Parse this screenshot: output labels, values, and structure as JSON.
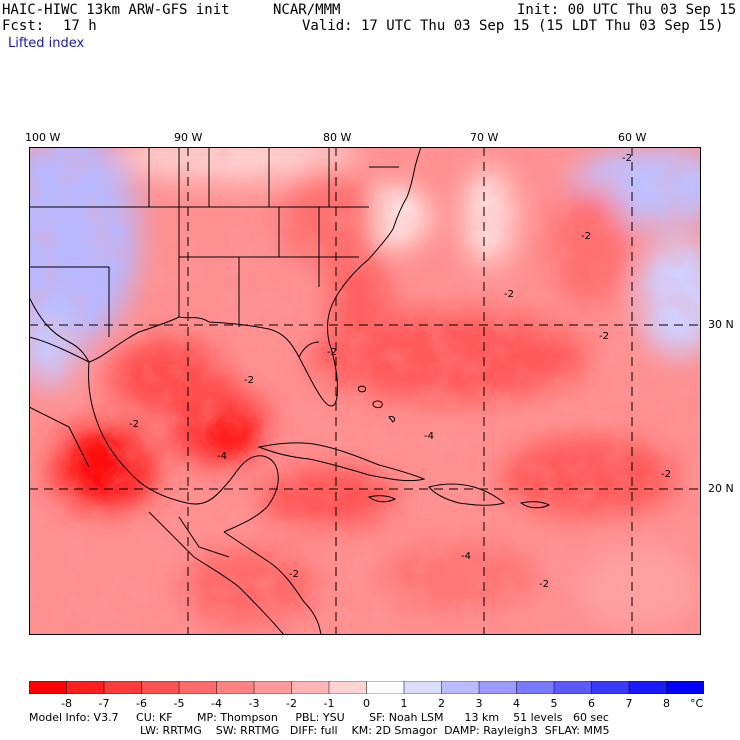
{
  "header": {
    "model": "HAIC-HIWC 13km ARW-GFS init",
    "org": "NCAR/MMM",
    "init": "Init: 00 UTC Thu 03 Sep 15",
    "fcst_label": "Fcst:",
    "fcst_value": "17 h",
    "valid": "Valid: 17 UTC Thu 03 Sep 15 (15 LDT Thu 03 Sep 15)",
    "field": "Lifted index"
  },
  "lon_labels": [
    "100 W",
    "90 W",
    "80 W",
    "70 W",
    "60 W"
  ],
  "lat_labels": [
    "30 N",
    "20 N"
  ],
  "contour_labels": [
    "-2",
    "-2",
    "-2",
    "-2",
    "-4",
    "-4",
    "-2",
    "-2",
    "-4",
    "-2",
    "-2",
    "-2",
    "-2"
  ],
  "colorbar": {
    "ticks": [
      "-8",
      "-7",
      "-6",
      "-5",
      "-4",
      "-3",
      "-2",
      "-1",
      "0",
      "1",
      "2",
      "3",
      "4",
      "5",
      "6",
      "7",
      "8"
    ],
    "unit": "°C",
    "colors": [
      "#ff0000",
      "#ff1f1f",
      "#ff3a3a",
      "#ff5252",
      "#ff6a6a",
      "#ff8282",
      "#ff9a9a",
      "#ffb5b5",
      "#ffd3d3",
      "#ffffff",
      "#dcdcff",
      "#bbbbff",
      "#9a9aff",
      "#7a7aff",
      "#5a5aff",
      "#3a3aff",
      "#1a1aff",
      "#0000ff"
    ]
  },
  "model_info": {
    "line1": "Model Info: V3.7     CU: KF       MP: Thompson     PBL: YSU       SF: Noah LSM      13 km    51 levels   60 sec",
    "line2": "LW: RRTMG    SW: RRTMG   DIFF: full    KM: 2D Smagor  DAMP: Rayleigh3  SFLAY: MM5"
  }
}
